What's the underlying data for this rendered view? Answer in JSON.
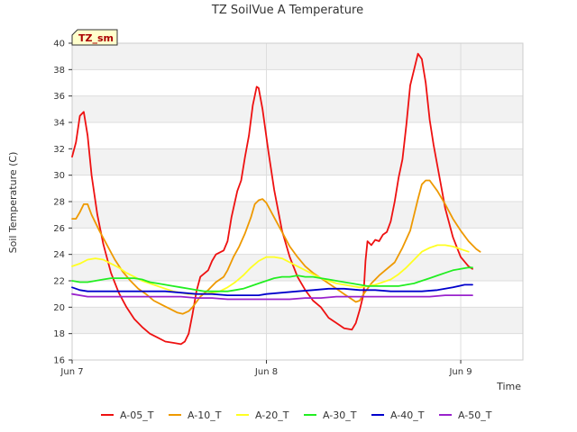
{
  "chart_data": {
    "type": "line",
    "title": "TZ SoilVue A Temperature",
    "xlabel": "Time",
    "ylabel": "Soil Temperature (C)",
    "ylim": [
      16,
      40
    ],
    "yticks": [
      16,
      18,
      20,
      22,
      24,
      26,
      28,
      30,
      32,
      34,
      36,
      38,
      40
    ],
    "xlim": [
      0,
      2.32
    ],
    "xticks": [
      {
        "value": 0,
        "label": "Jun 7"
      },
      {
        "value": 1,
        "label": "Jun 8"
      },
      {
        "value": 2,
        "label": "Jun 9"
      }
    ],
    "grid": true,
    "legend_position": "bottom",
    "badge": "TZ_sm",
    "series": [
      {
        "name": "A-05_T",
        "color": "#ee1111",
        "points": [
          [
            0.0,
            31.4
          ],
          [
            0.02,
            32.5
          ],
          [
            0.04,
            34.5
          ],
          [
            0.06,
            34.8
          ],
          [
            0.08,
            33.0
          ],
          [
            0.1,
            30.0
          ],
          [
            0.13,
            27.0
          ],
          [
            0.16,
            24.8
          ],
          [
            0.2,
            22.6
          ],
          [
            0.24,
            21.1
          ],
          [
            0.28,
            20.0
          ],
          [
            0.32,
            19.1
          ],
          [
            0.36,
            18.5
          ],
          [
            0.4,
            18.0
          ],
          [
            0.44,
            17.7
          ],
          [
            0.48,
            17.4
          ],
          [
            0.52,
            17.3
          ],
          [
            0.56,
            17.2
          ],
          [
            0.58,
            17.4
          ],
          [
            0.6,
            18.0
          ],
          [
            0.62,
            19.5
          ],
          [
            0.64,
            21.2
          ],
          [
            0.66,
            22.3
          ],
          [
            0.7,
            22.8
          ],
          [
            0.72,
            23.5
          ],
          [
            0.74,
            24.0
          ],
          [
            0.78,
            24.3
          ],
          [
            0.8,
            25.0
          ],
          [
            0.82,
            26.8
          ],
          [
            0.85,
            28.8
          ],
          [
            0.87,
            29.6
          ],
          [
            0.89,
            31.4
          ],
          [
            0.91,
            33.0
          ],
          [
            0.93,
            35.3
          ],
          [
            0.95,
            36.7
          ],
          [
            0.96,
            36.6
          ],
          [
            0.98,
            35.0
          ],
          [
            1.01,
            31.8
          ],
          [
            1.04,
            28.9
          ],
          [
            1.08,
            25.8
          ],
          [
            1.12,
            23.8
          ],
          [
            1.16,
            22.3
          ],
          [
            1.2,
            21.3
          ],
          [
            1.24,
            20.5
          ],
          [
            1.28,
            20.0
          ],
          [
            1.32,
            19.2
          ],
          [
            1.36,
            18.8
          ],
          [
            1.4,
            18.4
          ],
          [
            1.44,
            18.3
          ],
          [
            1.46,
            18.8
          ],
          [
            1.48,
            19.8
          ],
          [
            1.5,
            21.0
          ],
          [
            1.51,
            23.5
          ],
          [
            1.52,
            25.0
          ],
          [
            1.54,
            24.7
          ],
          [
            1.56,
            25.1
          ],
          [
            1.58,
            25.0
          ],
          [
            1.6,
            25.5
          ],
          [
            1.62,
            25.7
          ],
          [
            1.64,
            26.5
          ],
          [
            1.66,
            28.0
          ],
          [
            1.68,
            29.8
          ],
          [
            1.7,
            31.2
          ],
          [
            1.72,
            33.8
          ],
          [
            1.74,
            36.8
          ],
          [
            1.76,
            38.0
          ],
          [
            1.78,
            39.2
          ],
          [
            1.8,
            38.8
          ],
          [
            1.82,
            37.0
          ],
          [
            1.84,
            34.2
          ],
          [
            1.86,
            32.3
          ],
          [
            1.88,
            30.7
          ],
          [
            1.92,
            27.5
          ],
          [
            1.96,
            25.3
          ],
          [
            2.0,
            23.8
          ],
          [
            2.04,
            23.1
          ],
          [
            2.06,
            22.9
          ]
        ]
      },
      {
        "name": "A-10_T",
        "color": "#ee9900",
        "points": [
          [
            0.0,
            26.7
          ],
          [
            0.02,
            26.7
          ],
          [
            0.04,
            27.2
          ],
          [
            0.06,
            27.8
          ],
          [
            0.08,
            27.8
          ],
          [
            0.1,
            27.0
          ],
          [
            0.14,
            25.8
          ],
          [
            0.18,
            24.7
          ],
          [
            0.22,
            23.6
          ],
          [
            0.26,
            22.7
          ],
          [
            0.3,
            22.0
          ],
          [
            0.34,
            21.4
          ],
          [
            0.38,
            21.0
          ],
          [
            0.42,
            20.5
          ],
          [
            0.46,
            20.2
          ],
          [
            0.5,
            19.9
          ],
          [
            0.54,
            19.6
          ],
          [
            0.57,
            19.5
          ],
          [
            0.6,
            19.7
          ],
          [
            0.62,
            20.0
          ],
          [
            0.66,
            20.8
          ],
          [
            0.7,
            21.3
          ],
          [
            0.74,
            21.9
          ],
          [
            0.78,
            22.3
          ],
          [
            0.8,
            22.8
          ],
          [
            0.83,
            23.8
          ],
          [
            0.86,
            24.6
          ],
          [
            0.89,
            25.6
          ],
          [
            0.92,
            26.8
          ],
          [
            0.94,
            27.8
          ],
          [
            0.96,
            28.1
          ],
          [
            0.98,
            28.2
          ],
          [
            1.0,
            27.9
          ],
          [
            1.04,
            26.8
          ],
          [
            1.08,
            25.7
          ],
          [
            1.12,
            24.6
          ],
          [
            1.16,
            23.8
          ],
          [
            1.2,
            23.1
          ],
          [
            1.24,
            22.6
          ],
          [
            1.28,
            22.2
          ],
          [
            1.32,
            21.8
          ],
          [
            1.36,
            21.4
          ],
          [
            1.4,
            21.0
          ],
          [
            1.44,
            20.6
          ],
          [
            1.46,
            20.4
          ],
          [
            1.48,
            20.5
          ],
          [
            1.5,
            21.0
          ],
          [
            1.54,
            21.8
          ],
          [
            1.58,
            22.4
          ],
          [
            1.62,
            22.9
          ],
          [
            1.66,
            23.4
          ],
          [
            1.7,
            24.5
          ],
          [
            1.74,
            25.8
          ],
          [
            1.76,
            27.0
          ],
          [
            1.78,
            28.2
          ],
          [
            1.8,
            29.3
          ],
          [
            1.82,
            29.6
          ],
          [
            1.84,
            29.6
          ],
          [
            1.88,
            28.8
          ],
          [
            1.92,
            27.8
          ],
          [
            1.96,
            26.7
          ],
          [
            2.0,
            25.8
          ],
          [
            2.04,
            25.0
          ],
          [
            2.08,
            24.4
          ],
          [
            2.1,
            24.2
          ]
        ]
      },
      {
        "name": "A-20_T",
        "color": "#ffff22",
        "points": [
          [
            0.0,
            23.1
          ],
          [
            0.04,
            23.3
          ],
          [
            0.08,
            23.6
          ],
          [
            0.12,
            23.7
          ],
          [
            0.16,
            23.6
          ],
          [
            0.2,
            23.3
          ],
          [
            0.24,
            23.0
          ],
          [
            0.28,
            22.6
          ],
          [
            0.32,
            22.3
          ],
          [
            0.36,
            22.0
          ],
          [
            0.4,
            21.8
          ],
          [
            0.44,
            21.6
          ],
          [
            0.48,
            21.4
          ],
          [
            0.52,
            21.2
          ],
          [
            0.56,
            21.1
          ],
          [
            0.6,
            21.0
          ],
          [
            0.64,
            21.0
          ],
          [
            0.68,
            21.0
          ],
          [
            0.72,
            21.1
          ],
          [
            0.76,
            21.2
          ],
          [
            0.8,
            21.5
          ],
          [
            0.84,
            21.9
          ],
          [
            0.88,
            22.4
          ],
          [
            0.92,
            23.0
          ],
          [
            0.96,
            23.5
          ],
          [
            1.0,
            23.8
          ],
          [
            1.04,
            23.8
          ],
          [
            1.08,
            23.7
          ],
          [
            1.12,
            23.4
          ],
          [
            1.16,
            23.1
          ],
          [
            1.2,
            22.8
          ],
          [
            1.24,
            22.5
          ],
          [
            1.28,
            22.2
          ],
          [
            1.32,
            22.0
          ],
          [
            1.36,
            21.8
          ],
          [
            1.4,
            21.7
          ],
          [
            1.44,
            21.6
          ],
          [
            1.48,
            21.5
          ],
          [
            1.52,
            21.6
          ],
          [
            1.56,
            21.7
          ],
          [
            1.6,
            21.9
          ],
          [
            1.64,
            22.1
          ],
          [
            1.68,
            22.5
          ],
          [
            1.72,
            23.0
          ],
          [
            1.76,
            23.6
          ],
          [
            1.8,
            24.2
          ],
          [
            1.84,
            24.5
          ],
          [
            1.88,
            24.7
          ],
          [
            1.92,
            24.7
          ],
          [
            1.96,
            24.6
          ],
          [
            2.0,
            24.4
          ],
          [
            2.04,
            24.2
          ]
        ]
      },
      {
        "name": "A-30_T",
        "color": "#22ee22",
        "points": [
          [
            0.0,
            22.0
          ],
          [
            0.04,
            21.9
          ],
          [
            0.08,
            21.9
          ],
          [
            0.12,
            22.0
          ],
          [
            0.16,
            22.1
          ],
          [
            0.2,
            22.2
          ],
          [
            0.24,
            22.2
          ],
          [
            0.28,
            22.2
          ],
          [
            0.32,
            22.2
          ],
          [
            0.36,
            22.1
          ],
          [
            0.4,
            21.9
          ],
          [
            0.44,
            21.8
          ],
          [
            0.48,
            21.7
          ],
          [
            0.52,
            21.6
          ],
          [
            0.56,
            21.5
          ],
          [
            0.6,
            21.4
          ],
          [
            0.64,
            21.3
          ],
          [
            0.68,
            21.2
          ],
          [
            0.72,
            21.2
          ],
          [
            0.76,
            21.2
          ],
          [
            0.8,
            21.2
          ],
          [
            0.84,
            21.3
          ],
          [
            0.88,
            21.4
          ],
          [
            0.92,
            21.6
          ],
          [
            0.96,
            21.8
          ],
          [
            1.0,
            22.0
          ],
          [
            1.04,
            22.2
          ],
          [
            1.08,
            22.3
          ],
          [
            1.12,
            22.3
          ],
          [
            1.16,
            22.4
          ],
          [
            1.2,
            22.3
          ],
          [
            1.24,
            22.3
          ],
          [
            1.28,
            22.2
          ],
          [
            1.32,
            22.1
          ],
          [
            1.36,
            22.0
          ],
          [
            1.4,
            21.9
          ],
          [
            1.44,
            21.8
          ],
          [
            1.48,
            21.7
          ],
          [
            1.52,
            21.6
          ],
          [
            1.56,
            21.6
          ],
          [
            1.6,
            21.6
          ],
          [
            1.64,
            21.6
          ],
          [
            1.68,
            21.6
          ],
          [
            1.72,
            21.7
          ],
          [
            1.76,
            21.8
          ],
          [
            1.8,
            22.0
          ],
          [
            1.84,
            22.2
          ],
          [
            1.88,
            22.4
          ],
          [
            1.92,
            22.6
          ],
          [
            1.96,
            22.8
          ],
          [
            2.0,
            22.9
          ],
          [
            2.04,
            23.0
          ],
          [
            2.06,
            23.0
          ]
        ]
      },
      {
        "name": "A-40_T",
        "color": "#0000cc",
        "points": [
          [
            0.0,
            21.5
          ],
          [
            0.04,
            21.3
          ],
          [
            0.08,
            21.2
          ],
          [
            0.16,
            21.2
          ],
          [
            0.24,
            21.2
          ],
          [
            0.32,
            21.2
          ],
          [
            0.4,
            21.2
          ],
          [
            0.48,
            21.2
          ],
          [
            0.56,
            21.1
          ],
          [
            0.64,
            21.0
          ],
          [
            0.72,
            21.0
          ],
          [
            0.8,
            20.9
          ],
          [
            0.88,
            20.9
          ],
          [
            0.96,
            20.9
          ],
          [
            1.0,
            21.0
          ],
          [
            1.08,
            21.1
          ],
          [
            1.16,
            21.2
          ],
          [
            1.24,
            21.3
          ],
          [
            1.32,
            21.4
          ],
          [
            1.4,
            21.4
          ],
          [
            1.48,
            21.3
          ],
          [
            1.56,
            21.3
          ],
          [
            1.64,
            21.2
          ],
          [
            1.72,
            21.2
          ],
          [
            1.8,
            21.2
          ],
          [
            1.88,
            21.3
          ],
          [
            1.96,
            21.5
          ],
          [
            2.02,
            21.7
          ],
          [
            2.06,
            21.7
          ]
        ]
      },
      {
        "name": "A-50_T",
        "color": "#9922cc",
        "points": [
          [
            0.0,
            21.0
          ],
          [
            0.04,
            20.9
          ],
          [
            0.08,
            20.8
          ],
          [
            0.16,
            20.8
          ],
          [
            0.24,
            20.8
          ],
          [
            0.32,
            20.8
          ],
          [
            0.4,
            20.8
          ],
          [
            0.48,
            20.8
          ],
          [
            0.56,
            20.8
          ],
          [
            0.64,
            20.7
          ],
          [
            0.72,
            20.7
          ],
          [
            0.8,
            20.6
          ],
          [
            0.88,
            20.6
          ],
          [
            0.96,
            20.6
          ],
          [
            1.04,
            20.6
          ],
          [
            1.12,
            20.6
          ],
          [
            1.2,
            20.7
          ],
          [
            1.28,
            20.7
          ],
          [
            1.36,
            20.8
          ],
          [
            1.44,
            20.8
          ],
          [
            1.52,
            20.8
          ],
          [
            1.6,
            20.8
          ],
          [
            1.68,
            20.8
          ],
          [
            1.76,
            20.8
          ],
          [
            1.84,
            20.8
          ],
          [
            1.92,
            20.9
          ],
          [
            2.0,
            20.9
          ],
          [
            2.06,
            20.9
          ]
        ]
      }
    ]
  }
}
